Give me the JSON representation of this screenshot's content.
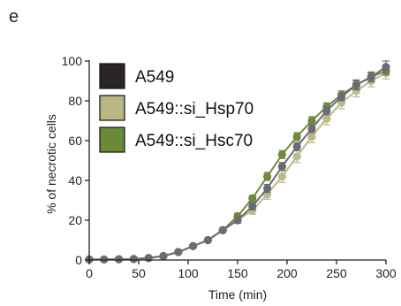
{
  "panel_label": "e",
  "colors": {
    "A549": "#6b6b73",
    "A549_si_Hsp70": "#bdb98a",
    "A549_si_Hsc70": "#6e8a3a",
    "A549_swatch": "#2a2426",
    "A549_si_Hsp70_swatch": "#b8b684",
    "A549_si_Hsc70_swatch": "#6b8a36",
    "axis": "#222222"
  },
  "chart_data": {
    "type": "line",
    "title": "",
    "xlabel": "Time (min)",
    "ylabel": "% of necrotic cells",
    "xlim": [
      0,
      300
    ],
    "ylim": [
      0,
      100
    ],
    "xticks": [
      0,
      50,
      100,
      150,
      200,
      250,
      300
    ],
    "yticks": [
      0,
      20,
      40,
      60,
      80,
      100
    ],
    "legend_position": "top-left",
    "series": [
      {
        "name": "A549",
        "color_key": "A549",
        "swatch_key": "A549_swatch",
        "x": [
          0,
          15,
          30,
          45,
          60,
          75,
          90,
          105,
          120,
          135,
          150,
          165,
          180,
          195,
          210,
          225,
          240,
          255,
          270,
          285,
          300
        ],
        "y": [
          0.3,
          0.3,
          0.4,
          0.5,
          1,
          2,
          4,
          7,
          10,
          15,
          20,
          27,
          36,
          47,
          57,
          66,
          75,
          82,
          88,
          92,
          97
        ],
        "err": [
          0.5,
          0.5,
          0.5,
          0.5,
          0.6,
          0.7,
          0.8,
          1,
          1,
          1.2,
          1.5,
          1.8,
          2,
          2,
          2,
          2,
          2,
          2,
          2.5,
          2.5,
          3
        ]
      },
      {
        "name": "A549::si_Hsp70",
        "color_key": "A549_si_Hsp70",
        "swatch_key": "A549_si_Hsp70_swatch",
        "x": [
          0,
          15,
          30,
          45,
          60,
          75,
          90,
          105,
          120,
          135,
          150,
          165,
          180,
          195,
          210,
          225,
          240,
          255,
          270,
          285,
          300
        ],
        "y": [
          0.3,
          0.3,
          0.4,
          0.5,
          1,
          2,
          4,
          7,
          10,
          15,
          20,
          25,
          33,
          42,
          52,
          62,
          71,
          79,
          85,
          90,
          94
        ],
        "err": [
          0.5,
          0.5,
          0.5,
          0.5,
          0.6,
          0.7,
          0.8,
          1,
          1,
          1.2,
          1.5,
          2,
          2.5,
          3,
          3,
          3,
          3,
          3,
          3,
          3,
          3
        ]
      },
      {
        "name": "A549::si_Hsc70",
        "color_key": "A549_si_Hsc70",
        "swatch_key": "A549_si_Hsc70_swatch",
        "x": [
          0,
          15,
          30,
          45,
          60,
          75,
          90,
          105,
          120,
          135,
          150,
          165,
          180,
          195,
          210,
          225,
          240,
          255,
          270,
          285,
          300
        ],
        "y": [
          0.3,
          0.3,
          0.4,
          0.5,
          1,
          2,
          4,
          7,
          10,
          15,
          22,
          31,
          42,
          53,
          62,
          70,
          77,
          83,
          88,
          92,
          95
        ],
        "err": [
          0.5,
          0.5,
          0.5,
          0.5,
          0.6,
          0.7,
          0.8,
          1,
          1,
          1.2,
          1.5,
          1.5,
          2,
          2,
          2,
          2,
          2,
          2,
          2,
          2,
          2
        ]
      }
    ]
  }
}
